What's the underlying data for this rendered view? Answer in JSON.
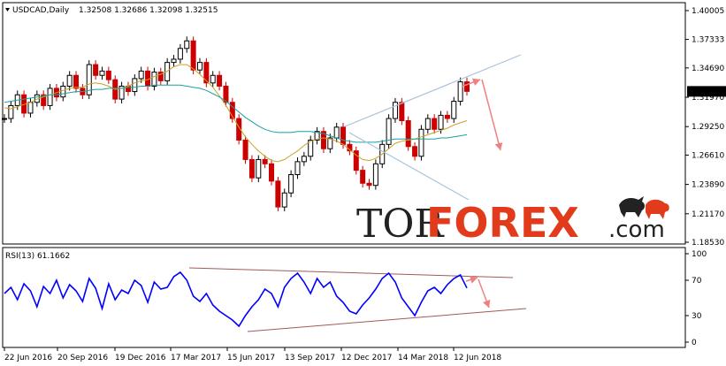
{
  "chart_data": [
    {
      "type": "line",
      "panel": "price",
      "symbol_label": "USDCAD,Daily",
      "ohlc_label": "1.32508 1.32686 1.32098 1.32515",
      "current_price_label": "1.32515",
      "y_ticks": [
        "1.40005",
        "1.37333",
        "1.34690",
        "1.31970",
        "1.29250",
        "1.26610",
        "1.23890",
        "1.21170",
        "1.18530"
      ],
      "ylim": [
        1.1853,
        1.40005
      ],
      "x_tick_labels": [
        "22 Jun 2016",
        "20 Sep 2016",
        "19 Dec 2016",
        "17 Mar 2017",
        "15 Jun 2017",
        "13 Sep 2017",
        "12 Dec 2017",
        "14 Mar 2018",
        "12 Jun 2018"
      ],
      "series": [
        {
          "values": [
            1.3,
            1.312,
            1.322,
            1.305,
            1.315,
            1.322,
            1.312,
            1.328,
            1.32,
            1.33,
            1.34,
            1.328,
            1.322,
            1.35,
            1.34,
            1.344,
            1.336,
            1.318,
            1.33,
            1.325,
            1.337,
            1.344,
            1.33,
            1.343,
            1.335,
            1.352,
            1.355,
            1.365,
            1.372,
            1.345,
            1.352,
            1.333,
            1.34,
            1.33,
            1.315,
            1.3,
            1.28,
            1.262,
            1.245,
            1.262,
            1.258,
            1.242,
            1.218,
            1.231,
            1.248,
            1.26,
            1.265,
            1.28,
            1.288,
            1.272,
            1.282,
            1.292,
            1.276,
            1.27,
            1.252,
            1.24,
            1.238,
            1.258,
            1.276,
            1.3,
            1.315,
            1.298,
            1.274,
            1.265,
            1.29,
            1.3,
            1.29,
            1.303,
            1.3,
            1.316,
            1.334,
            1.3252
          ],
          "color": "#000000"
        },
        {
          "values": [
            1.31,
            1.309,
            1.311,
            1.313,
            1.315,
            1.318,
            1.32,
            1.322,
            1.324,
            1.326,
            1.328,
            1.329,
            1.329,
            1.332,
            1.333,
            1.332,
            1.33,
            1.327,
            1.328,
            1.33,
            1.333,
            1.335,
            1.336,
            1.339,
            1.341,
            1.344,
            1.348,
            1.35,
            1.35,
            1.346,
            1.341,
            1.335,
            1.329,
            1.321,
            1.312,
            1.302,
            1.292,
            1.283,
            1.276,
            1.27,
            1.265,
            1.261,
            1.26,
            1.262,
            1.266,
            1.27,
            1.275,
            1.279,
            1.281,
            1.282,
            1.281,
            1.279,
            1.276,
            1.271,
            1.266,
            1.262,
            1.261,
            1.263,
            1.267,
            1.272,
            1.277,
            1.279,
            1.28,
            1.281,
            1.283,
            1.285,
            1.287,
            1.289,
            1.291,
            1.294,
            1.296,
            1.298
          ],
          "color": "#c9a227"
        },
        {
          "values": [
            1.315,
            1.316,
            1.317,
            1.318,
            1.319,
            1.32,
            1.321,
            1.322,
            1.322,
            1.323,
            1.324,
            1.325,
            1.325,
            1.326,
            1.327,
            1.327,
            1.328,
            1.328,
            1.328,
            1.329,
            1.329,
            1.33,
            1.33,
            1.331,
            1.331,
            1.331,
            1.331,
            1.331,
            1.33,
            1.329,
            1.328,
            1.326,
            1.323,
            1.32,
            1.316,
            1.311,
            1.306,
            1.301,
            1.297,
            1.293,
            1.29,
            1.288,
            1.287,
            1.287,
            1.287,
            1.288,
            1.288,
            1.288,
            1.287,
            1.286,
            1.284,
            1.282,
            1.28,
            1.279,
            1.278,
            1.278,
            1.278,
            1.278,
            1.279,
            1.28,
            1.281,
            1.281,
            1.281,
            1.281,
            1.281,
            1.281,
            1.281,
            1.282,
            1.282,
            1.283,
            1.284,
            1.285
          ],
          "color": "#1aa0a0"
        }
      ]
    },
    {
      "type": "line",
      "panel": "rsi",
      "label": "RSI(13) 61.1662",
      "y_ticks": [
        "100",
        "70",
        "30",
        "0"
      ],
      "ylim": [
        0,
        100
      ],
      "series": [
        {
          "values": [
            55,
            62,
            48,
            66,
            58,
            40,
            63,
            55,
            70,
            50,
            65,
            58,
            46,
            72,
            61,
            38,
            66,
            48,
            59,
            55,
            70,
            64,
            45,
            68,
            60,
            62,
            74,
            79,
            70,
            52,
            46,
            55,
            42,
            35,
            30,
            25,
            18,
            30,
            40,
            48,
            60,
            55,
            40,
            62,
            72,
            78,
            68,
            55,
            72,
            62,
            68,
            52,
            45,
            35,
            32,
            42,
            50,
            60,
            72,
            78,
            68,
            50,
            40,
            30,
            45,
            58,
            62,
            55,
            65,
            72,
            76,
            61.17
          ],
          "color": "#0000ff"
        }
      ]
    }
  ],
  "watermark": {
    "part1": "TOR",
    "part2": "FOREX",
    "part3": ".com"
  },
  "colors": {
    "bull_candle": "#000000",
    "bear_candle": "#cc0000",
    "channel": "#a9c4dc",
    "forecast_arrow": "#f08080",
    "rsi_channel": "#a05a5a",
    "watermark_dark": "#222222",
    "watermark_accent": "#e23b1c"
  },
  "icons": [
    "bull-icon",
    "bear-icon",
    "chart-symbol-icon"
  ]
}
